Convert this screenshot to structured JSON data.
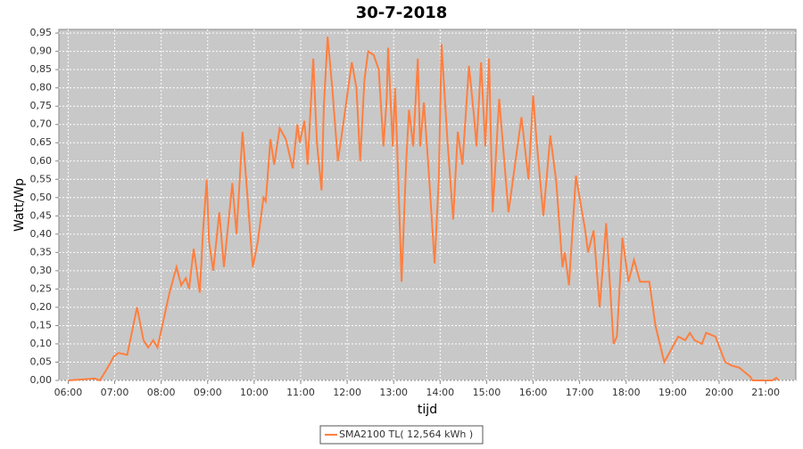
{
  "chart_data": {
    "type": "line",
    "title": "30-7-2018",
    "xlabel": "tijd",
    "ylabel": "Watt/Wp",
    "grid": true,
    "legend": "bottom",
    "xlim": [
      5.8,
      21.65
    ],
    "ylim": [
      0,
      0.96
    ],
    "xticks": [
      {
        "value": 6,
        "label": "06:00"
      },
      {
        "value": 7,
        "label": "07:00"
      },
      {
        "value": 8,
        "label": "08:00"
      },
      {
        "value": 9,
        "label": "09:00"
      },
      {
        "value": 10,
        "label": "10:00"
      },
      {
        "value": 11,
        "label": "11:00"
      },
      {
        "value": 12,
        "label": "12:00"
      },
      {
        "value": 13,
        "label": "13:00"
      },
      {
        "value": 14,
        "label": "14:00"
      },
      {
        "value": 15,
        "label": "15:00"
      },
      {
        "value": 16,
        "label": "16:00"
      },
      {
        "value": 17,
        "label": "17:00"
      },
      {
        "value": 18,
        "label": "18:00"
      },
      {
        "value": 19,
        "label": "19:00"
      },
      {
        "value": 20,
        "label": "20:00"
      },
      {
        "value": 21,
        "label": "21:00"
      }
    ],
    "yticks": [
      {
        "value": 0,
        "label": "0,00"
      },
      {
        "value": 0.05,
        "label": "0,05"
      },
      {
        "value": 0.1,
        "label": "0,10"
      },
      {
        "value": 0.15,
        "label": "0,15"
      },
      {
        "value": 0.2,
        "label": "0,20"
      },
      {
        "value": 0.25,
        "label": "0,25"
      },
      {
        "value": 0.3,
        "label": "0,30"
      },
      {
        "value": 0.35,
        "label": "0,35"
      },
      {
        "value": 0.4,
        "label": "0,40"
      },
      {
        "value": 0.45,
        "label": "0,45"
      },
      {
        "value": 0.5,
        "label": "0,50"
      },
      {
        "value": 0.55,
        "label": "0,55"
      },
      {
        "value": 0.6,
        "label": "0,60"
      },
      {
        "value": 0.65,
        "label": "0,65"
      },
      {
        "value": 0.7,
        "label": "0,70"
      },
      {
        "value": 0.75,
        "label": "0,75"
      },
      {
        "value": 0.8,
        "label": "0,80"
      },
      {
        "value": 0.85,
        "label": "0,85"
      },
      {
        "value": 0.9,
        "label": "0,90"
      },
      {
        "value": 0.95,
        "label": "0,95"
      }
    ],
    "x": [
      6.0,
      6.58,
      6.68,
      6.85,
      6.98,
      7.08,
      7.27,
      7.48,
      7.62,
      7.72,
      7.83,
      7.92,
      8.18,
      8.33,
      8.43,
      8.53,
      8.6,
      8.7,
      8.83,
      8.9,
      8.98,
      9.03,
      9.12,
      9.25,
      9.35,
      9.53,
      9.62,
      9.75,
      9.87,
      9.97,
      10.08,
      10.2,
      10.25,
      10.35,
      10.43,
      10.55,
      10.68,
      10.83,
      10.93,
      10.98,
      11.08,
      11.15,
      11.27,
      11.35,
      11.45,
      11.5,
      11.58,
      11.68,
      11.8,
      11.88,
      11.97,
      12.1,
      12.2,
      12.28,
      12.37,
      12.45,
      12.57,
      12.68,
      12.78,
      12.85,
      12.88,
      12.98,
      13.03,
      13.1,
      13.17,
      13.27,
      13.33,
      13.42,
      13.52,
      13.57,
      13.65,
      13.75,
      13.88,
      13.97,
      14.03,
      14.15,
      14.28,
      14.38,
      14.48,
      14.62,
      14.73,
      14.78,
      14.88,
      14.97,
      15.05,
      15.13,
      15.27,
      15.47,
      15.75,
      15.9,
      16.0,
      16.07,
      16.22,
      16.37,
      16.5,
      16.63,
      16.68,
      16.77,
      16.92,
      17.12,
      17.18,
      17.3,
      17.43,
      17.57,
      17.73,
      17.8,
      17.92,
      18.05,
      18.17,
      18.3,
      18.5,
      18.63,
      18.82,
      19.12,
      19.27,
      19.37,
      19.47,
      19.63,
      19.72,
      19.92,
      20.13,
      20.28,
      20.43,
      20.67,
      20.72,
      21.15,
      21.23,
      21.28
    ],
    "series": [
      {
        "name": "SMA2100 TL( 12,564 kWh )",
        "color": "#ff7f3f",
        "values": [
          0,
          0.005,
          0,
          0.035,
          0.065,
          0.075,
          0.07,
          0.2,
          0.11,
          0.09,
          0.11,
          0.09,
          0.24,
          0.31,
          0.26,
          0.28,
          0.25,
          0.36,
          0.24,
          0.41,
          0.55,
          0.38,
          0.3,
          0.46,
          0.31,
          0.54,
          0.4,
          0.68,
          0.48,
          0.31,
          0.38,
          0.5,
          0.49,
          0.66,
          0.59,
          0.69,
          0.66,
          0.58,
          0.7,
          0.65,
          0.71,
          0.59,
          0.88,
          0.65,
          0.52,
          0.75,
          0.94,
          0.8,
          0.6,
          0.67,
          0.75,
          0.87,
          0.8,
          0.6,
          0.82,
          0.9,
          0.89,
          0.85,
          0.64,
          0.77,
          0.91,
          0.64,
          0.8,
          0.55,
          0.27,
          0.6,
          0.74,
          0.64,
          0.88,
          0.64,
          0.76,
          0.58,
          0.32,
          0.55,
          0.92,
          0.67,
          0.44,
          0.68,
          0.59,
          0.86,
          0.72,
          0.64,
          0.87,
          0.64,
          0.88,
          0.46,
          0.77,
          0.46,
          0.72,
          0.55,
          0.78,
          0.66,
          0.45,
          0.67,
          0.54,
          0.31,
          0.35,
          0.26,
          0.56,
          0.41,
          0.35,
          0.41,
          0.2,
          0.43,
          0.1,
          0.12,
          0.39,
          0.27,
          0.33,
          0.27,
          0.27,
          0.15,
          0.05,
          0.12,
          0.11,
          0.13,
          0.11,
          0.1,
          0.13,
          0.12,
          0.05,
          0.04,
          0.035,
          0.01,
          0,
          0,
          0.007,
          0
        ]
      }
    ]
  }
}
